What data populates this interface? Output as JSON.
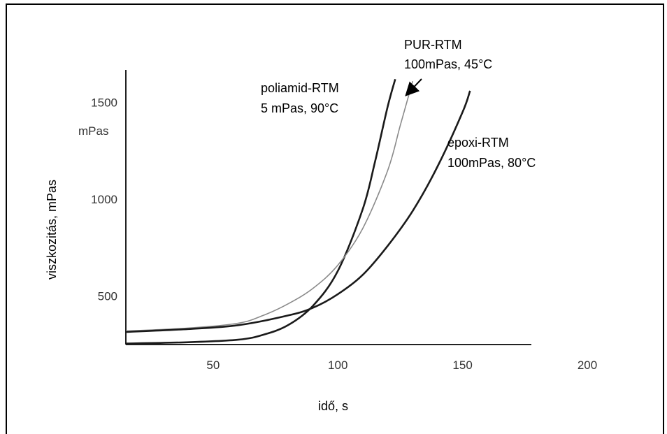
{
  "chart_data": {
    "type": "line",
    "xlabel": "idő, s",
    "ylabel": "viszkozitás, mPas",
    "y_unit_label": "mPas",
    "xlim": [
      15,
      200
    ],
    "ylim": [
      250,
      1650
    ],
    "x_ticks": [
      50,
      100,
      150,
      200
    ],
    "y_ticks": [
      500,
      1000,
      1500
    ],
    "grid": false,
    "series": [
      {
        "name": "poliamid-RTM",
        "annotation": "5 mPas, 90°C",
        "color": "#1a1a1a",
        "x": [
          15,
          40,
          60,
          70,
          80,
          90,
          100,
          110,
          115,
          120,
          123
        ],
        "y": [
          255,
          262,
          275,
          300,
          350,
          450,
          630,
          950,
          1200,
          1480,
          1620
        ]
      },
      {
        "name": "PUR-RTM",
        "annotation": "100mPas, 45°C",
        "color": "#8a8a8a",
        "x": [
          15,
          40,
          60,
          70,
          80,
          90,
          100,
          110,
          120,
          125,
          130
        ],
        "y": [
          320,
          335,
          360,
          400,
          460,
          540,
          660,
          850,
          1150,
          1380,
          1610
        ]
      },
      {
        "name": "epoxi-RTM",
        "annotation": "100mPas, 80°C",
        "color": "#1a1a1a",
        "x": [
          15,
          40,
          60,
          80,
          90,
          100,
          110,
          120,
          130,
          140,
          150,
          153
        ],
        "y": [
          315,
          330,
          350,
          400,
          440,
          510,
          610,
          760,
          940,
          1170,
          1450,
          1560
        ]
      }
    ]
  }
}
